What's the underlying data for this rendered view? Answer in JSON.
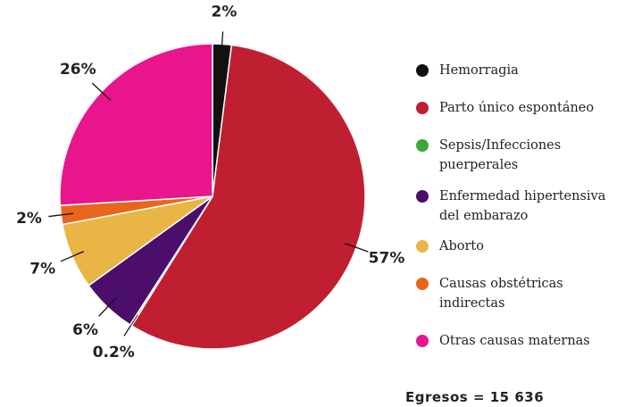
{
  "chart_data": {
    "type": "pie",
    "categories": [
      "Hemorragia",
      "Parto único espontáneo",
      "Sepsis/Infecciones puerperales",
      "Enfermedad hipertensiva del embarazo",
      "Aborto",
      "Causas obstétricas indirectas",
      "Otras causas maternas"
    ],
    "values": [
      2,
      57,
      0.2,
      6,
      7,
      2,
      26
    ],
    "value_labels": [
      "2%",
      "57%",
      "0.2%",
      "6%",
      "7%",
      "2%",
      "26%"
    ],
    "colors": [
      "#111111",
      "#c01f32",
      "#3aa838",
      "#4b0f6b",
      "#e9b545",
      "#e8661c",
      "#e8158c"
    ],
    "annotation": "Egresos = 15 636"
  }
}
